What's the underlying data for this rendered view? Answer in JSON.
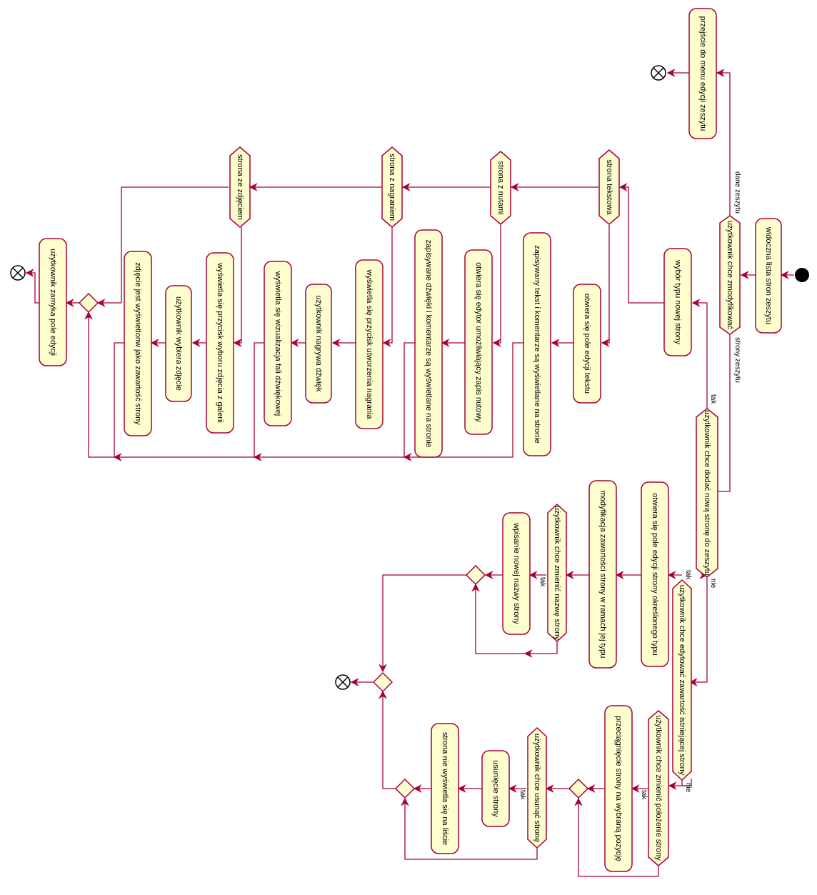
{
  "diagram": {
    "start": "start-node",
    "activities": {
      "a_list": "widoczna lista stron zeszytu",
      "a_menu": "przejście do menu edycji zeszytu",
      "a_type": "wybór typu nowej strony",
      "a_text_open": "otwiera się pole edycji tekstu",
      "a_text_save": "zapisywany tekst i komentarze są wyświetlane na stronie",
      "a_notes_open": "otwiera się edytor umożliwiający zapis nutowy",
      "a_notes_save": "zapisywane dźwięki i komentarze są wyświetlane na stronie",
      "a_rec_btn": "wyświetla się przycisk utworzenia nagrania",
      "a_rec_user": "użytkownik nagrywa dźwięk",
      "a_rec_vis": "wyświetla się wizualizacja fali dźwiękowej",
      "a_img_btn": "wyświetla się przycisk wyboru zdjęcia z galerii",
      "a_img_user": "użytkownik wybiera zdjęcie",
      "a_img_show": "zdjęcie jest wyświetlonw jako zawartość strony",
      "a_close": "użytkownik zamyka pole edycji",
      "a_edit_open": "otwiera się pole edycji strony określonego typu",
      "a_modify": "modyfikacja zawartości strony w ramach jej typu",
      "a_rename": "wpisanie nowej nazwy strony",
      "a_drag": "przeciągnięcie strony na wybraną pozycję",
      "a_delete": "usunięcie strony",
      "a_hidden": "strona nie wyświetla się na liście"
    },
    "conditions": {
      "c_modify": "użytkownik chce zmodyfikować",
      "c_add": "użytkownik chce dodać nową stronę do zeszytu",
      "c_edit": "użytkownik chce edytować zawartość istniejącej strony",
      "c_rename": "użytkownik chce zmienić nazwę strony",
      "c_move": "użytkownik chce zmienić położenie strony",
      "c_remove": "użytkownik chce usunąć stronę",
      "k_text": "strona tekstowa",
      "k_notes": "strona z nutami",
      "k_rec": "strona z nagraniem",
      "k_img": "strona ze zdjęciem"
    },
    "edge_labels": {
      "dane_zeszytu": "dane zeszytu",
      "strony_zeszytu": "strony zeszytu",
      "tak_add": "tak",
      "nie_add": "nie",
      "tak_edit": "tak",
      "nie_edit": "nie",
      "tak_rename": "tak",
      "tak_move": "tak",
      "tak_remove": "tak"
    },
    "colors": {
      "node_fill": "#FEFECE",
      "border": "#A80036",
      "start": "#000000"
    }
  }
}
